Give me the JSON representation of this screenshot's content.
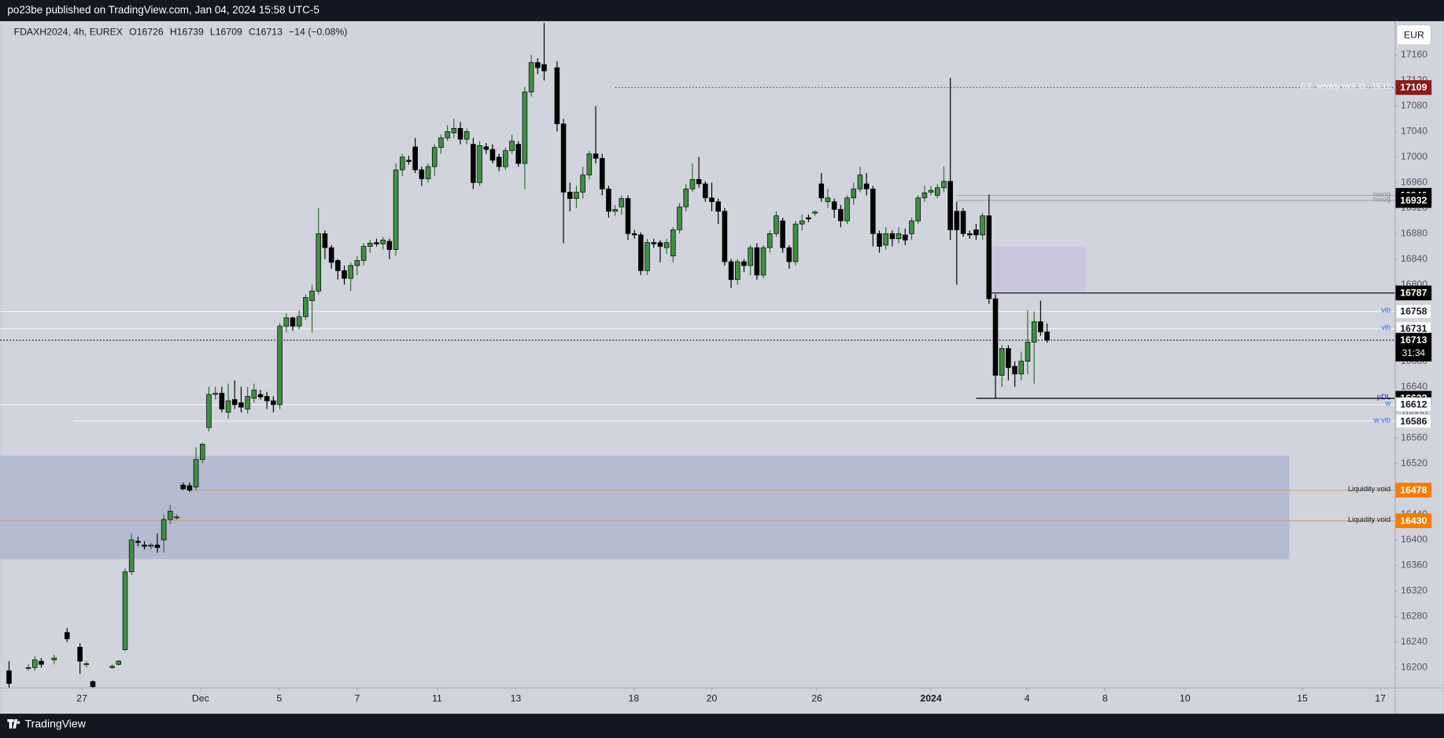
{
  "header": {
    "publisher": "po23be published on TradingView.com, Jan 04, 2024 15:58 UTC-5",
    "currency": "EUR",
    "footer": "TradingView"
  },
  "chart_data": {
    "type": "candlestick",
    "legend": {
      "symbol": "FDAXH2024, 4h, EUREX",
      "open": "O16726",
      "high": "H16739",
      "low": "L16709",
      "close": "C16713",
      "change": "−14 (−0.08%)"
    },
    "up_color": "#3f8f43",
    "down_color": "#000000",
    "border_color": "#000000",
    "background": "#d1d4dc",
    "xlim": [
      -1.4,
      215
    ],
    "ylim": [
      16168,
      17213
    ],
    "xticks": [
      {
        "value": 11.3,
        "label": "27"
      },
      {
        "value": 29.7,
        "label": "Dec"
      },
      {
        "value": 41.9,
        "label": "5"
      },
      {
        "value": 54,
        "label": "7"
      },
      {
        "value": 66.4,
        "label": "11"
      },
      {
        "value": 78.6,
        "label": "13"
      },
      {
        "value": 96.9,
        "label": "18"
      },
      {
        "value": 109,
        "label": "20"
      },
      {
        "value": 125.3,
        "label": "26"
      },
      {
        "value": 143,
        "label": "2024",
        "bold": true
      },
      {
        "value": 157.9,
        "label": "4"
      },
      {
        "value": 170,
        "label": "8"
      },
      {
        "value": 182.4,
        "label": "10"
      },
      {
        "value": 200.6,
        "label": "15"
      },
      {
        "value": 212.7,
        "label": "17"
      }
    ],
    "yticks": [
      16200,
      16240,
      16280,
      16320,
      16360,
      16400,
      16440,
      16480,
      16520,
      16560,
      16600,
      16640,
      16680,
      16720,
      16760,
      16800,
      16840,
      16880,
      16920,
      16960,
      17000,
      17040,
      17080,
      17120,
      17160
    ],
    "x": [
      0,
      3,
      4,
      5,
      7,
      9,
      11,
      12,
      13,
      16,
      17,
      18,
      19,
      20,
      21,
      22,
      23,
      24,
      25,
      26,
      27,
      28,
      29,
      30,
      31,
      32,
      33,
      34,
      35,
      36,
      37,
      38,
      39,
      40,
      41,
      42,
      43,
      44,
      45,
      46,
      47,
      48,
      49,
      50,
      51,
      52,
      53,
      54,
      55,
      56,
      57,
      58,
      59,
      60,
      61,
      62,
      63,
      64,
      65,
      66,
      67,
      68,
      69,
      70,
      71,
      72,
      73,
      74,
      75,
      76,
      77,
      78,
      79,
      80,
      81,
      82,
      83,
      85,
      86,
      87,
      88,
      89,
      90,
      91,
      92,
      93,
      94,
      95,
      96,
      97,
      98,
      99,
      100,
      101,
      102,
      103,
      104,
      105,
      106,
      107,
      108,
      109,
      110,
      111,
      112,
      113,
      114,
      115,
      116,
      117,
      118,
      119,
      120,
      121,
      122,
      123,
      124,
      125,
      126,
      127,
      128,
      129,
      130,
      131,
      132,
      133,
      134,
      135,
      136,
      137,
      138,
      139,
      140,
      141,
      142,
      143,
      144,
      145,
      146,
      147,
      148,
      149,
      150,
      151,
      152,
      153,
      154,
      155,
      156,
      157,
      158,
      159,
      160,
      161
    ],
    "open": [
      16195,
      16200,
      16200,
      16210,
      16212,
      16255,
      16232,
      16205,
      16178,
      16200,
      16205,
      16228,
      16350,
      16398,
      16392,
      16390,
      16392,
      16400,
      16432,
      16436,
      16486,
      16485,
      16483,
      16526,
      16576,
      16628,
      16630,
      16600,
      16620,
      16615,
      16605,
      16622,
      16628,
      16625,
      16618,
      16612,
      16735,
      16748,
      16735,
      16750,
      16775,
      16790,
      16880,
      16858,
      16838,
      16822,
      16810,
      16830,
      16838,
      16860,
      16866,
      16864,
      16868,
      16855,
      16980,
      16995,
      17016,
      16980,
      16966,
      16985,
      17015,
      17030,
      17038,
      17045,
      17028,
      17020,
      16960,
      17016,
      17012,
      17000,
      16985,
      17010,
      17020,
      16990,
      17102,
      17148,
      17145,
      17140,
      17052,
      16945,
      16935,
      16945,
      16972,
      17005,
      16998,
      16950,
      16915,
      16922,
      16935,
      16880,
      16878,
      16822,
      16866,
      16866,
      16858,
      16845,
      16886,
      16922,
      16950,
      16965,
      16958,
      16936,
      16930,
      16915,
      16836,
      16808,
      16836,
      16830,
      16858,
      16815,
      16858,
      16880,
      16900,
      16858,
      16836,
      16895,
      16905,
      16912,
      16958,
      16930,
      16930,
      16918,
      16900,
      16936,
      16950,
      16958,
      16950,
      16880,
      16862,
      16880,
      16872,
      16878,
      16880,
      16900,
      16936,
      16945,
      16940,
      16952,
      16962,
      16915,
      16915,
      16880,
      16886,
      16878,
      16908,
      16778,
      16658,
      16700,
      16672,
      16660,
      16680,
      16710,
      16742,
      16726
    ],
    "high": [
      16210,
      16205,
      16218,
      16215,
      16220,
      16262,
      16238,
      16210,
      16180,
      16205,
      16212,
      16355,
      16410,
      16405,
      16398,
      16395,
      16410,
      16440,
      16455,
      16440,
      16490,
      16490,
      16545,
      16552,
      16640,
      16640,
      16640,
      16645,
      16650,
      16640,
      16640,
      16645,
      16635,
      16632,
      16625,
      16740,
      16755,
      16750,
      16760,
      16785,
      16800,
      16920,
      16885,
      16862,
      16840,
      16830,
      16835,
      16845,
      16865,
      16870,
      16872,
      16875,
      16872,
      16990,
      17005,
      17002,
      17030,
      16985,
      16990,
      17020,
      17035,
      17050,
      17060,
      17055,
      17045,
      17030,
      17025,
      17022,
      17020,
      17005,
      17015,
      17035,
      17025,
      17110,
      17160,
      17155,
      17210,
      17150,
      17060,
      16960,
      16955,
      16985,
      17010,
      17080,
      17005,
      16955,
      16925,
      16940,
      16940,
      16886,
      16882,
      16872,
      16872,
      16870,
      16872,
      16890,
      16928,
      16958,
      16990,
      17000,
      16962,
      16960,
      16935,
      16920,
      16840,
      16840,
      16840,
      16862,
      16865,
      16862,
      16885,
      16915,
      16905,
      16862,
      16900,
      16910,
      16910,
      16916,
      16975,
      16950,
      16935,
      16925,
      16940,
      16960,
      16985,
      16975,
      16955,
      16885,
      16890,
      16885,
      16890,
      16888,
      16905,
      16940,
      16955,
      16955,
      16958,
      16985,
      17124,
      16930,
      16920,
      16885,
      16895,
      16912,
      16941,
      16785,
      16705,
      16705,
      16680,
      16695,
      16760,
      16758,
      16775,
      16739
    ],
    "low": [
      16165,
      16195,
      16195,
      16200,
      16205,
      16240,
      16190,
      16200,
      16165,
      16198,
      16203,
      16226,
      16345,
      16390,
      16385,
      16385,
      16380,
      16380,
      16425,
      16432,
      16478,
      16475,
      16478,
      16520,
      16570,
      16620,
      16600,
      16590,
      16605,
      16600,
      16598,
      16615,
      16620,
      16605,
      16600,
      16605,
      16725,
      16728,
      16730,
      16745,
      16725,
      16785,
      16840,
      16825,
      16808,
      16800,
      16790,
      16815,
      16830,
      16850,
      16860,
      16855,
      16840,
      16845,
      16970,
      16988,
      16975,
      16955,
      16960,
      16970,
      17005,
      17025,
      17030,
      17020,
      17020,
      16950,
      16955,
      17005,
      16990,
      16978,
      16980,
      17005,
      16985,
      16950,
      17095,
      17130,
      17120,
      17040,
      16865,
      16915,
      16920,
      16935,
      16965,
      16990,
      16940,
      16905,
      16908,
      16910,
      16870,
      16872,
      16815,
      16815,
      16858,
      16835,
      16848,
      16835,
      16880,
      16915,
      16945,
      16952,
      16930,
      16915,
      16895,
      16830,
      16795,
      16800,
      16820,
      16815,
      16808,
      16810,
      16850,
      16875,
      16850,
      16825,
      16830,
      16885,
      16898,
      16908,
      16930,
      16920,
      16905,
      16890,
      16895,
      16925,
      16945,
      16940,
      16860,
      16850,
      16855,
      16860,
      16865,
      16862,
      16870,
      16895,
      16930,
      16940,
      16935,
      16945,
      16870,
      16800,
      16875,
      16872,
      16870,
      16870,
      16770,
      16622,
      16640,
      16650,
      16640,
      16650,
      16660,
      16645,
      16720,
      16709
    ],
    "close": [
      16175,
      16200,
      16212,
      16205,
      16215,
      16245,
      16210,
      16206,
      16170,
      16202,
      16210,
      16350,
      16400,
      16396,
      16390,
      16392,
      16388,
      16432,
      16445,
      16436,
      16480,
      16478,
      16526,
      16550,
      16628,
      16630,
      16605,
      16618,
      16612,
      16608,
      16625,
      16635,
      16624,
      16618,
      16612,
      16735,
      16748,
      16735,
      16750,
      16780,
      16790,
      16880,
      16858,
      16835,
      16822,
      16810,
      16830,
      16838,
      16860,
      16865,
      16864,
      16870,
      16855,
      16980,
      17000,
      16993,
      16980,
      16966,
      16985,
      17015,
      17030,
      17040,
      17045,
      17028,
      17040,
      16960,
      17018,
      17012,
      16995,
      16985,
      17010,
      17025,
      16990,
      17102,
      17148,
      17140,
      17135,
      17052,
      16945,
      16935,
      16945,
      16972,
      17005,
      16998,
      16950,
      16915,
      16918,
      16935,
      16880,
      16878,
      16822,
      16866,
      16864,
      16860,
      16866,
      16886,
      16922,
      16950,
      16965,
      16958,
      16936,
      16930,
      16915,
      16836,
      16808,
      16836,
      16830,
      16858,
      16815,
      16858,
      16880,
      16908,
      16858,
      16836,
      16895,
      16900,
      16903,
      16914,
      16936,
      16936,
      16918,
      16900,
      16936,
      16950,
      16972,
      16950,
      16880,
      16860,
      16880,
      16872,
      16880,
      16870,
      16900,
      16936,
      16944,
      16948,
      16952,
      16962,
      16886,
      16886,
      16880,
      16878,
      16878,
      16908,
      16778,
      16658,
      16700,
      16670,
      16660,
      16680,
      16710,
      16742,
      16726,
      16713
    ],
    "zones": [
      {
        "top": 16532,
        "bottom": 16370,
        "start": -1.4,
        "end": 198.6,
        "color": "#b3bad1"
      },
      {
        "top": 16860,
        "bottom": 16788,
        "start": 151.9,
        "end": 167,
        "color": "#cbc6e0"
      }
    ],
    "levels": [
      {
        "value": 17109,
        "label": "C.E. weekly wick 11. -15.12",
        "label_color": "#ffffff",
        "color": "#555a66",
        "style": "dotted",
        "start": 94,
        "tag_color": "#8b1a1a",
        "text_color": "#ffffff"
      },
      {
        "value": 16940,
        "label": "nwog",
        "label_color": "#8a8e99",
        "color": "#9ea2ad",
        "style": "solid",
        "start": 147,
        "tag_color": "#000000",
        "text_color": "#ffffff"
      },
      {
        "value": 16932,
        "label": "nwog",
        "label_color": "#8a8e99",
        "color": "#9ea2ad",
        "style": "solid",
        "start": 147,
        "tag_color": "#000000",
        "text_color": "#ffffff"
      },
      {
        "value": 16787,
        "color": "#000000",
        "style": "solid",
        "start": 152,
        "tag_color": "#000000",
        "text_color": "#ffffff"
      },
      {
        "value": 16758,
        "label": "vib",
        "label_color": "#2962ff",
        "color": "#f5f6f8",
        "style": "solid",
        "start": -1.4,
        "tag_color": "#ffffff",
        "text_color": "#131722"
      },
      {
        "value": 16731,
        "label": "vib",
        "label_color": "#2962ff",
        "color": "#f5f6f8",
        "style": "solid",
        "start": -1.4,
        "tag_color": "#ffffff",
        "text_color": "#131722"
      },
      {
        "value": 16713,
        "countdown": "31:34",
        "color": "#131722",
        "style": "dotted",
        "start": -1.4,
        "tag_color": "#000000",
        "text_color": "#ffffff"
      },
      {
        "value": 16622,
        "label": "pDL",
        "label_color": "#1a237e",
        "color": "#000000",
        "style": "solid",
        "start": 150,
        "tag_color": "#000000",
        "text_color": "#ffffff"
      },
      {
        "value": 16612,
        "label": "w",
        "label_color": "#2962ff",
        "color": "#f5f6f8",
        "style": "solid",
        "start": -1.4,
        "tag_color": "#ffffff",
        "text_color": "#131722"
      },
      {
        "value": 16586,
        "label": "w vib",
        "label_color": "#2962ff",
        "color": "#f5f6f8",
        "style": "solid",
        "start": 10,
        "tag_color": "#ffffff",
        "text_color": "#131722"
      },
      {
        "value": 16478,
        "label": "Liquidity void",
        "label_color": "#131722",
        "color": "#c9a67a",
        "style": "solid",
        "start": 28,
        "tag_color": "#f57c00",
        "text_color": "#ffffff"
      },
      {
        "value": 16430,
        "label": "Liquidity void",
        "label_color": "#131722",
        "color": "#c9a67a",
        "style": "solid",
        "start": -1.4,
        "tag_color": "#f57c00",
        "text_color": "#ffffff"
      }
    ]
  }
}
